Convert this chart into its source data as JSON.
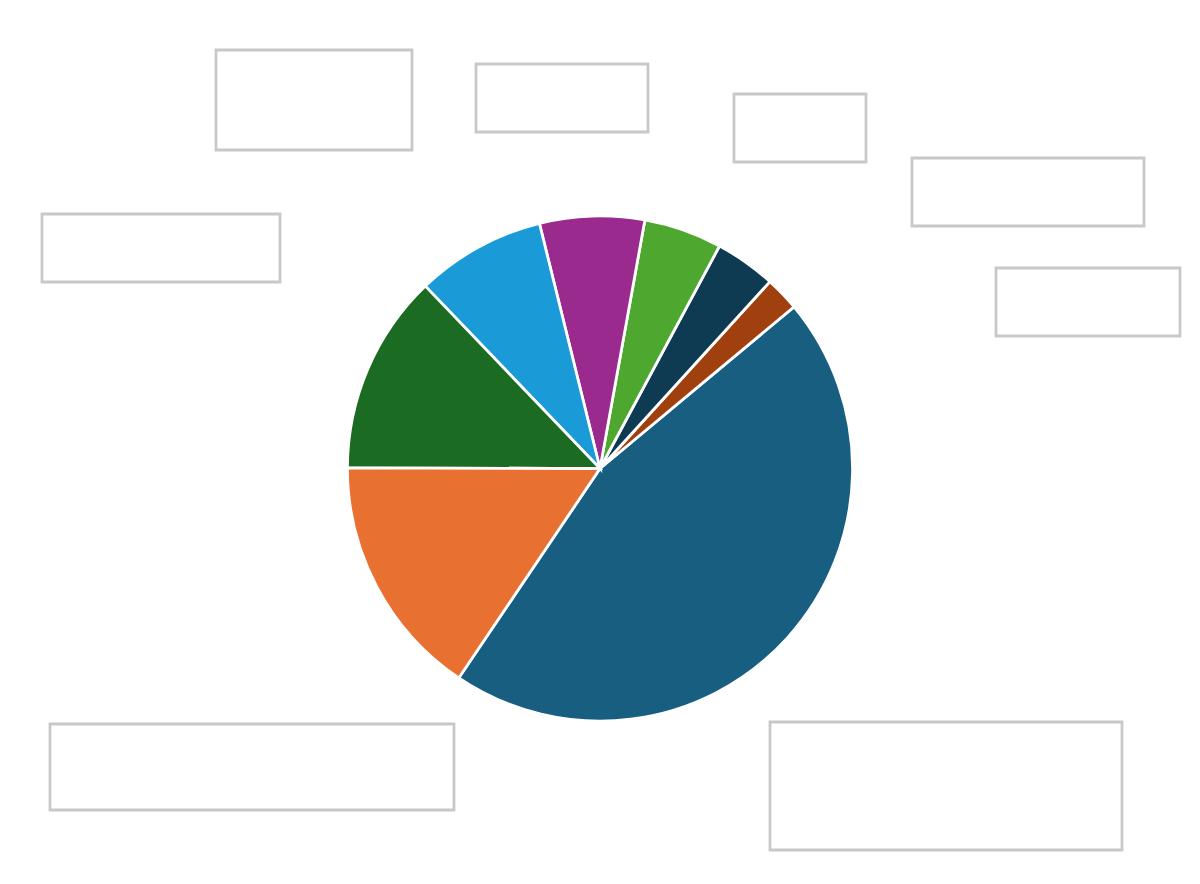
{
  "chart_data": {
    "type": "pie",
    "categories": [
      null,
      null,
      null,
      null,
      null,
      null,
      null,
      null
    ],
    "values": [
      45.5,
      2.2,
      3.9,
      5,
      6.7,
      8.3,
      12.8,
      15.6
    ],
    "colors": [
      "#175e80",
      "#a0400e",
      "#0e3a52",
      "#4ea72e",
      "#9b2a8e",
      "#1a9ad6",
      "#1b6b22",
      "#e87030"
    ],
    "legend": false
  }
}
